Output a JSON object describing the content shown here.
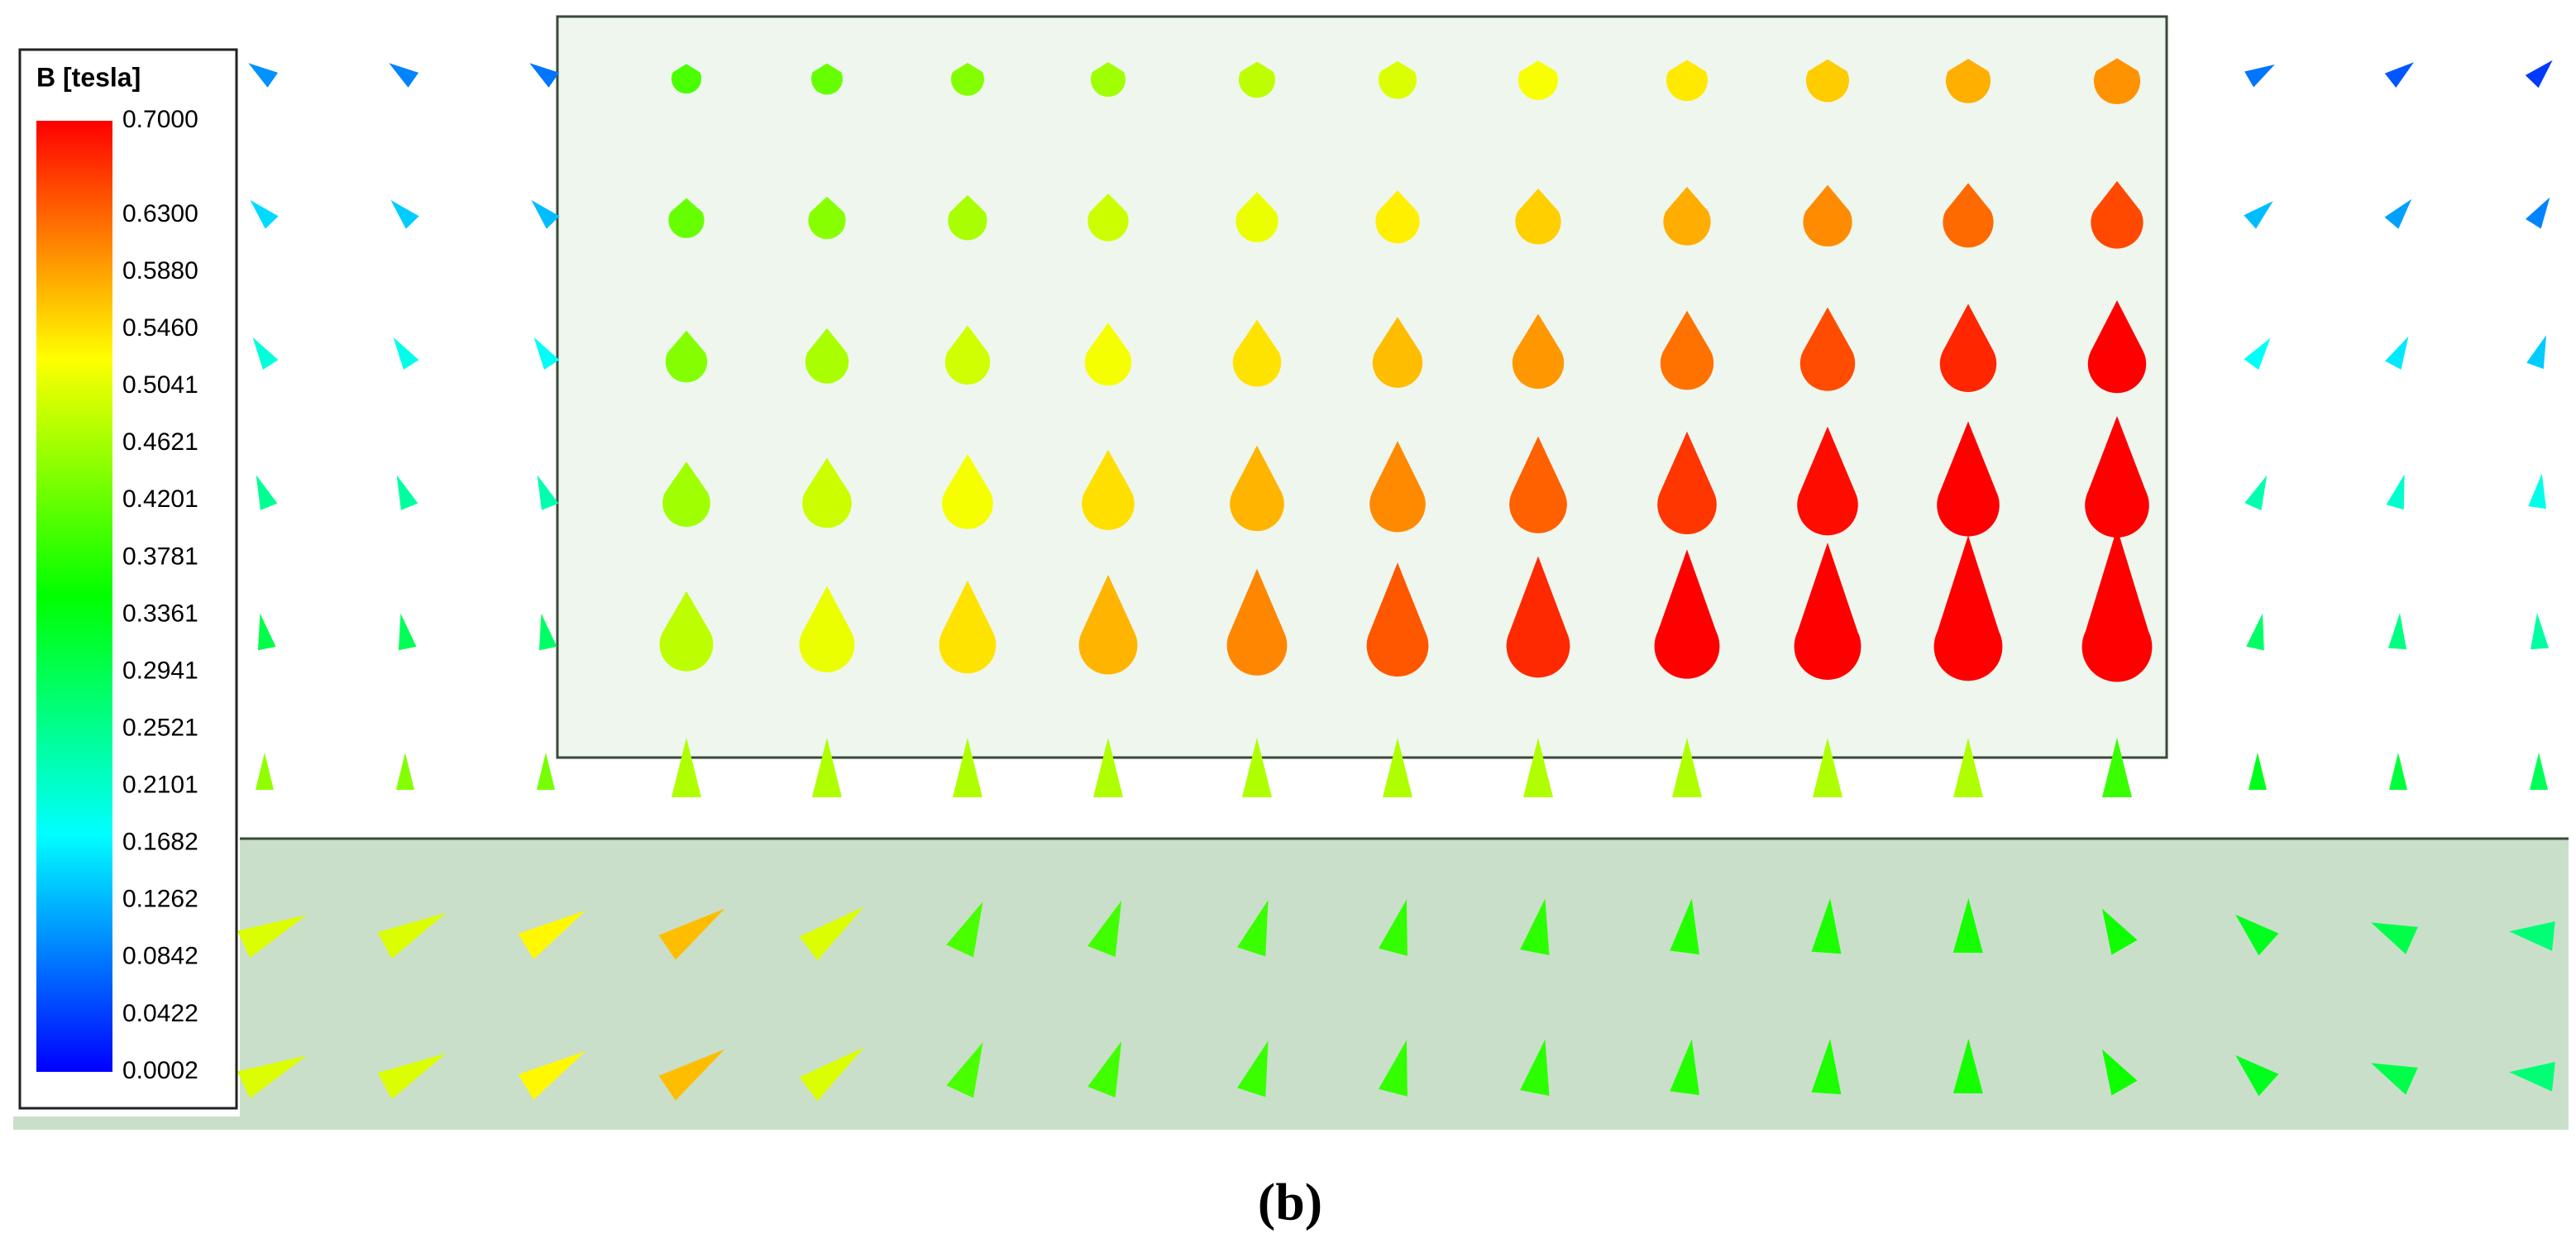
{
  "legend": {
    "title": "B [tesla]",
    "labels": [
      "0.7000",
      "0.6300",
      "0.5880",
      "0.5460",
      "0.5041",
      "0.4621",
      "0.4201",
      "0.3781",
      "0.3361",
      "0.2941",
      "0.2521",
      "0.2101",
      "0.1682",
      "0.1262",
      "0.0842",
      "0.0422",
      "0.0002"
    ]
  },
  "caption": "(b)"
}
